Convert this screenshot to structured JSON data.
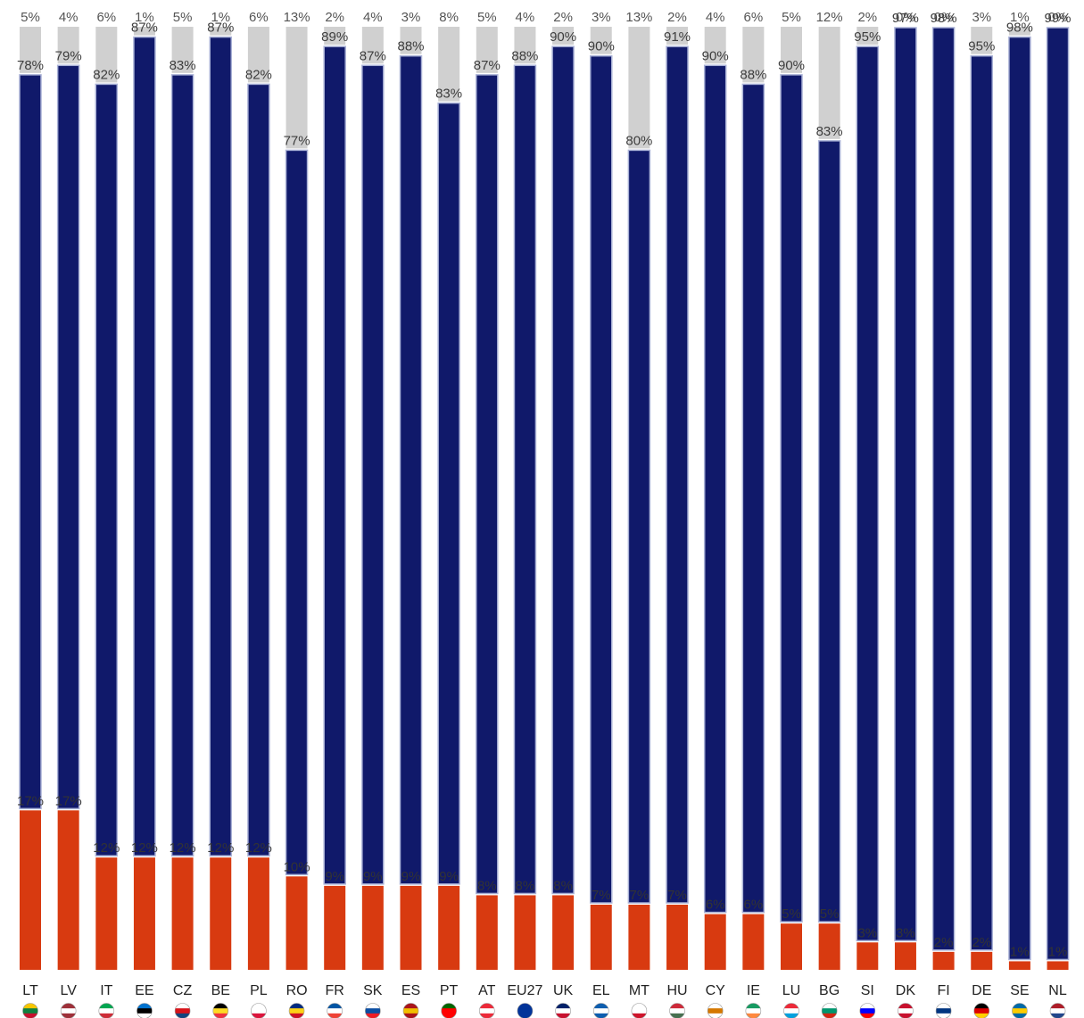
{
  "chart_data": {
    "type": "bar",
    "stacked": true,
    "categories": [
      "LT",
      "LV",
      "IT",
      "EE",
      "CZ",
      "BE",
      "PL",
      "RO",
      "FR",
      "SK",
      "ES",
      "PT",
      "AT",
      "EU27",
      "UK",
      "EL",
      "MT",
      "HU",
      "CY",
      "IE",
      "LU",
      "BG",
      "SI",
      "DK",
      "FI",
      "DE",
      "SE",
      "NL"
    ],
    "series": [
      {
        "values": [
          17,
          17,
          12,
          12,
          12,
          12,
          12,
          10,
          9,
          9,
          9,
          9,
          8,
          8,
          8,
          7,
          7,
          7,
          6,
          6,
          5,
          5,
          3,
          3,
          2,
          2,
          1,
          1
        ],
        "color": "#d83a10",
        "labels": [
          "17%",
          "17%",
          "12%",
          "12%",
          "12%",
          "12%",
          "12%",
          "10%",
          "9%",
          "9%",
          "9%",
          "9%",
          "8%",
          "8%",
          "8%",
          "7%",
          "7%",
          "7%",
          "6%",
          "6%",
          "5%",
          "5%",
          "3%",
          "3%",
          "2%",
          "2%",
          "1%",
          "1%"
        ]
      },
      {
        "values": [
          78,
          79,
          82,
          87,
          83,
          87,
          82,
          77,
          89,
          87,
          88,
          83,
          87,
          88,
          90,
          90,
          80,
          91,
          90,
          88,
          90,
          83,
          95,
          97,
          98,
          95,
          98,
          99
        ],
        "color": "#10196a",
        "labels": [
          "78%",
          "79%",
          "82%",
          "87%",
          "83%",
          "87%",
          "82%",
          "77%",
          "89%",
          "87%",
          "88%",
          "83%",
          "87%",
          "88%",
          "90%",
          "90%",
          "80%",
          "91%",
          "90%",
          "88%",
          "90%",
          "83%",
          "95%",
          "97%",
          "98%",
          "95%",
          "98%",
          "99%"
        ]
      },
      {
        "values": [
          5,
          4,
          6,
          1,
          5,
          1,
          6,
          13,
          2,
          4,
          3,
          8,
          5,
          4,
          2,
          3,
          13,
          2,
          4,
          6,
          5,
          12,
          2,
          0,
          0,
          3,
          1,
          0
        ],
        "color": "#d0d0d0",
        "labels": [
          "5%",
          "4%",
          "6%",
          "1%",
          "5%",
          "1%",
          "6%",
          "13%",
          "2%",
          "4%",
          "3%",
          "8%",
          "5%",
          "4%",
          "2%",
          "3%",
          "13%",
          "2%",
          "4%",
          "6%",
          "5%",
          "12%",
          "2%",
          "0%",
          "0%",
          "3%",
          "1%",
          "0%"
        ]
      }
    ],
    "flags": [
      "flag-lt",
      "flag-lv",
      "flag-it",
      "flag-ee",
      "flag-cz",
      "flag-be",
      "flag-pl",
      "flag-ro",
      "flag-fr",
      "flag-sk",
      "flag-es",
      "flag-pt",
      "flag-at",
      "flag-eu",
      "flag-uk",
      "flag-el",
      "flag-mt",
      "flag-hu",
      "flag-cy",
      "flag-ie",
      "flag-lu",
      "flag-bg",
      "flag-si",
      "flag-dk",
      "flag-fi",
      "flag-de",
      "flag-se",
      "flag-nl"
    ],
    "ylim": [
      0,
      100
    ]
  }
}
